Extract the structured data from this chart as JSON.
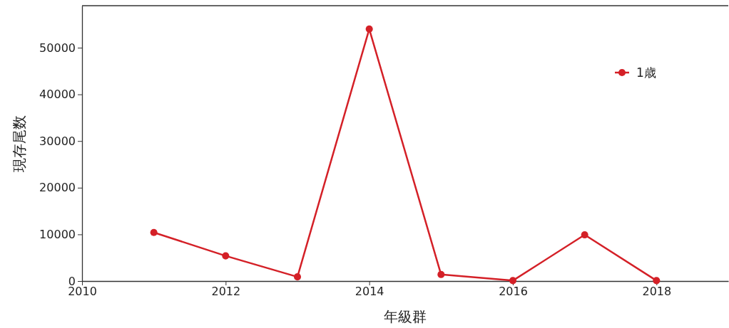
{
  "chart_data": {
    "type": "line",
    "xlabel": "年級群",
    "ylabel": "現存尾数",
    "x": [
      2011,
      2012,
      2013,
      2014,
      2015,
      2016,
      2017,
      2018
    ],
    "series": [
      {
        "name": "1歳",
        "color": "#d42027",
        "values": [
          10400,
          5400,
          900,
          54000,
          1400,
          100,
          9900,
          100
        ]
      }
    ],
    "xlim": [
      2010,
      2019
    ],
    "xticks": [
      2010,
      2012,
      2014,
      2016,
      2018
    ],
    "ylim": [
      0,
      59000
    ],
    "yticks": [
      0,
      10000,
      20000,
      30000,
      40000,
      50000
    ],
    "grid": false,
    "legend": "top right",
    "marker": "circle",
    "line_style": "solid"
  }
}
